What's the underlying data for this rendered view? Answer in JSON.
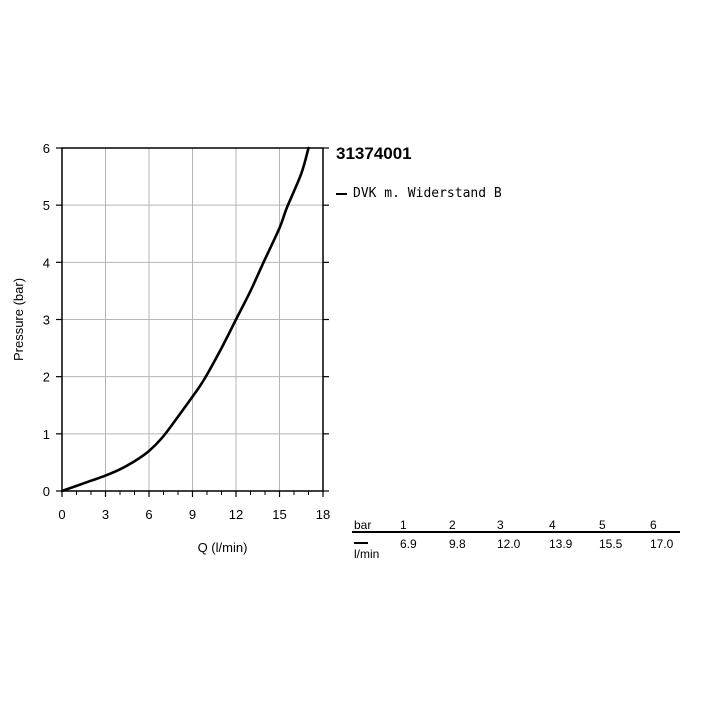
{
  "chart_data": {
    "type": "line",
    "title": "31374001",
    "xlabel": "Q (l/min)",
    "ylabel": "Pressure (bar)",
    "xlim": [
      0,
      18
    ],
    "ylim": [
      0,
      6
    ],
    "xticks": [
      0,
      3,
      6,
      9,
      12,
      15,
      18
    ],
    "yticks": [
      0,
      1,
      2,
      3,
      4,
      5,
      6
    ],
    "grid": true,
    "legend_position": "right",
    "series": [
      {
        "name": "DVK m. Widerstand B",
        "color": "#000000",
        "x": [
          0,
          1,
          2,
          3,
          4,
          5,
          6,
          6.9,
          8,
          9,
          9.8,
          11,
          12.0,
          13,
          13.9,
          15,
          15.5,
          16.5,
          17.0
        ],
        "y": [
          0,
          0.09,
          0.18,
          0.27,
          0.38,
          0.52,
          0.7,
          0.93,
          1.3,
          1.65,
          1.95,
          2.5,
          3.0,
          3.5,
          4.0,
          4.6,
          4.95,
          5.55,
          6.0
        ]
      }
    ]
  },
  "table": {
    "pressure_unit": "bar",
    "flow_unit": "l/min",
    "pressures": [
      "1",
      "2",
      "3",
      "4",
      "5",
      "6"
    ],
    "flows": [
      "6.9",
      "9.8",
      "12.0",
      "13.9",
      "15.5",
      "17.0"
    ]
  }
}
